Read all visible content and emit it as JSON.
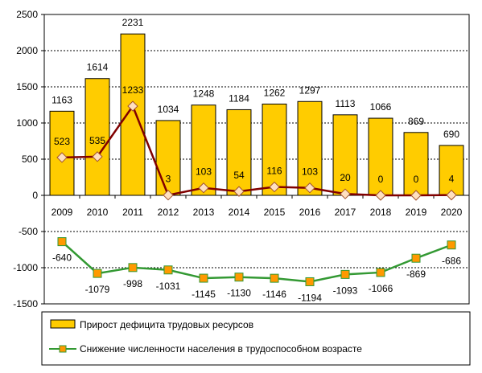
{
  "chart_data": {
    "type": "bar",
    "categories": [
      "2009",
      "2010",
      "2011",
      "2012",
      "2013",
      "2014",
      "2015",
      "2016",
      "2017",
      "2018",
      "2019",
      "2020"
    ],
    "ylim": [
      -1500,
      2500
    ],
    "yticks": [
      -1500,
      -1000,
      -500,
      0,
      500,
      1000,
      1500,
      2000,
      2500
    ],
    "ytick_labels": [
      "-1500",
      "-1000",
      "-500",
      "0",
      "500",
      "1000",
      "1500",
      "2000",
      "2500"
    ],
    "grid": true,
    "legend_placement": "bottom",
    "series": [
      {
        "name": "Прирост дефицита трудовых ресурсов",
        "type": "bar",
        "color": "#FFCC00",
        "values": [
          1163,
          1614,
          2231,
          1034,
          1248,
          1184,
          1262,
          1297,
          1113,
          1066,
          869,
          690
        ],
        "labels": [
          "1163",
          "1614",
          "2231",
          "1034",
          "1248",
          "1184",
          "1262",
          "1297",
          "1113",
          "1066",
          "869",
          "690"
        ]
      },
      {
        "type": "line",
        "color": "#800000",
        "marker_fill": "#FFE0C0",
        "values": [
          523,
          535,
          1233,
          3,
          103,
          54,
          116,
          103,
          20,
          0,
          0,
          4
        ],
        "labels": [
          "523",
          "535",
          "1233",
          "3",
          "103",
          "54",
          "116",
          "103",
          "20",
          "0",
          "0",
          "4"
        ]
      },
      {
        "name": "Снижение численности населения в трудоспособном возрасте",
        "type": "line",
        "color": "#339933",
        "marker_fill": "#FF9900",
        "values": [
          -640,
          -1079,
          -998,
          -1031,
          -1145,
          -1130,
          -1146,
          -1194,
          -1093,
          -1066,
          -869,
          -686
        ],
        "labels": [
          "-640",
          "-1079",
          "-998",
          "-1031",
          "-1145",
          "-1130",
          "-1146",
          "-1194",
          "-1093",
          "-1066",
          "-869",
          "-686"
        ]
      }
    ]
  }
}
